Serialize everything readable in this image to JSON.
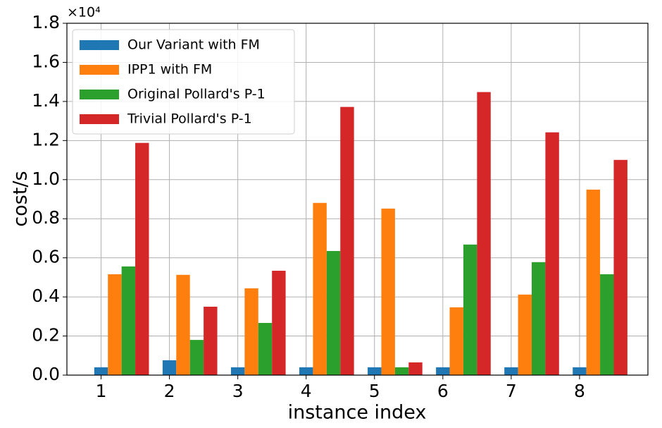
{
  "chart_data": {
    "type": "bar",
    "x_label": "instance index",
    "y_label": "cost/s",
    "y_offset_label": "×10⁴",
    "x": [
      1,
      2,
      3,
      4,
      5,
      6,
      7,
      8
    ],
    "xlim": [
      0.5,
      9.0
    ],
    "xticks": [
      1,
      2,
      3,
      4,
      5,
      6,
      7,
      8
    ],
    "ylim": [
      0,
      1.8
    ],
    "yticks": [
      {
        "value": 0,
        "label": "0.0"
      },
      0.2,
      0.4,
      0.6,
      0.8,
      {
        "value": 1,
        "label": "1.0"
      },
      1.2,
      1.4,
      1.6,
      1.8
    ],
    "grid": true,
    "legend": "upper left",
    "series": [
      {
        "name": "Our Variant with FM",
        "color": "#1f77b4",
        "values": [
          0.04,
          0.076,
          0.04,
          0.04,
          0.04,
          0.04,
          0.04,
          0.04
        ]
      },
      {
        "name": "IPP1 with FM",
        "color": "#ff7f0e",
        "values": [
          0.516,
          0.513,
          0.444,
          0.881,
          0.852,
          0.347,
          0.412,
          0.949
        ]
      },
      {
        "name": "Original Pollard's P-1",
        "color": "#2ca02c",
        "values": [
          0.556,
          0.18,
          0.267,
          0.635,
          0.04,
          0.668,
          0.578,
          0.516
        ]
      },
      {
        "name": "Trivial Pollard's P-1",
        "color": "#d62728",
        "values": [
          1.188,
          0.35,
          0.534,
          1.372,
          0.065,
          1.448,
          1.242,
          1.101
        ]
      }
    ]
  }
}
